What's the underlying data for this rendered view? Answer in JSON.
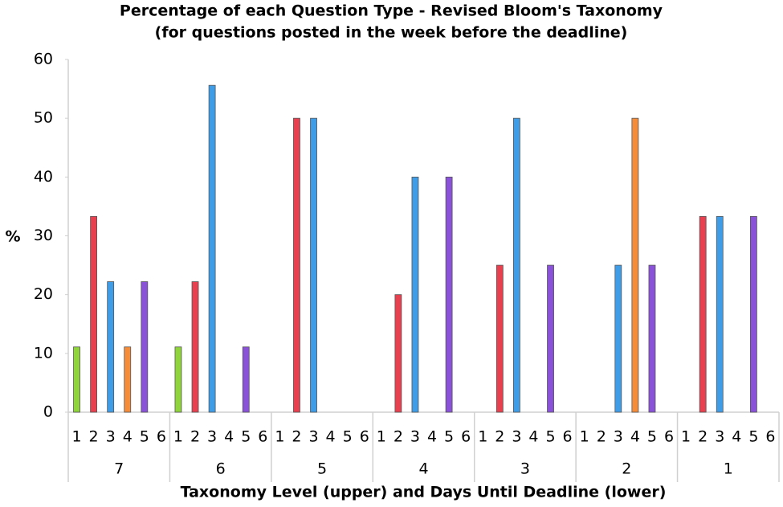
{
  "chart_data": {
    "type": "bar",
    "title": "Percentage of each Question Type - Revised Bloom's Taxonomy",
    "subtitle": "(for questions posted in the week before the deadline)",
    "y_label": "%",
    "x_label": "Taxonomy Level (upper) and Days Until Deadline (lower)",
    "categories": [
      "7",
      "6",
      "5",
      "4",
      "3",
      "2",
      "1"
    ],
    "series": [
      {
        "name": "1",
        "color": "#8ed43a",
        "values": [
          11.1,
          11.1,
          0,
          0,
          0,
          0,
          0
        ]
      },
      {
        "name": "2",
        "color": "#e8404e",
        "values": [
          33.3,
          22.2,
          50,
          20,
          25,
          0,
          33.3
        ]
      },
      {
        "name": "3",
        "color": "#3f9de8",
        "values": [
          22.2,
          55.6,
          50,
          40,
          50,
          25,
          33.3
        ]
      },
      {
        "name": "4",
        "color": "#f58c3a",
        "values": [
          11.1,
          0,
          0,
          0,
          0,
          50,
          0
        ]
      },
      {
        "name": "5",
        "color": "#8a52d8",
        "values": [
          22.2,
          11.1,
          0,
          40,
          25,
          25,
          33.3
        ]
      },
      {
        "name": "6",
        "color": "#999999",
        "values": [
          0,
          0,
          0,
          0,
          0,
          0,
          0
        ]
      }
    ],
    "ylim": [
      0,
      60
    ],
    "yticks": [
      0,
      10,
      20,
      30,
      40,
      50,
      60
    ],
    "grid": false
  }
}
